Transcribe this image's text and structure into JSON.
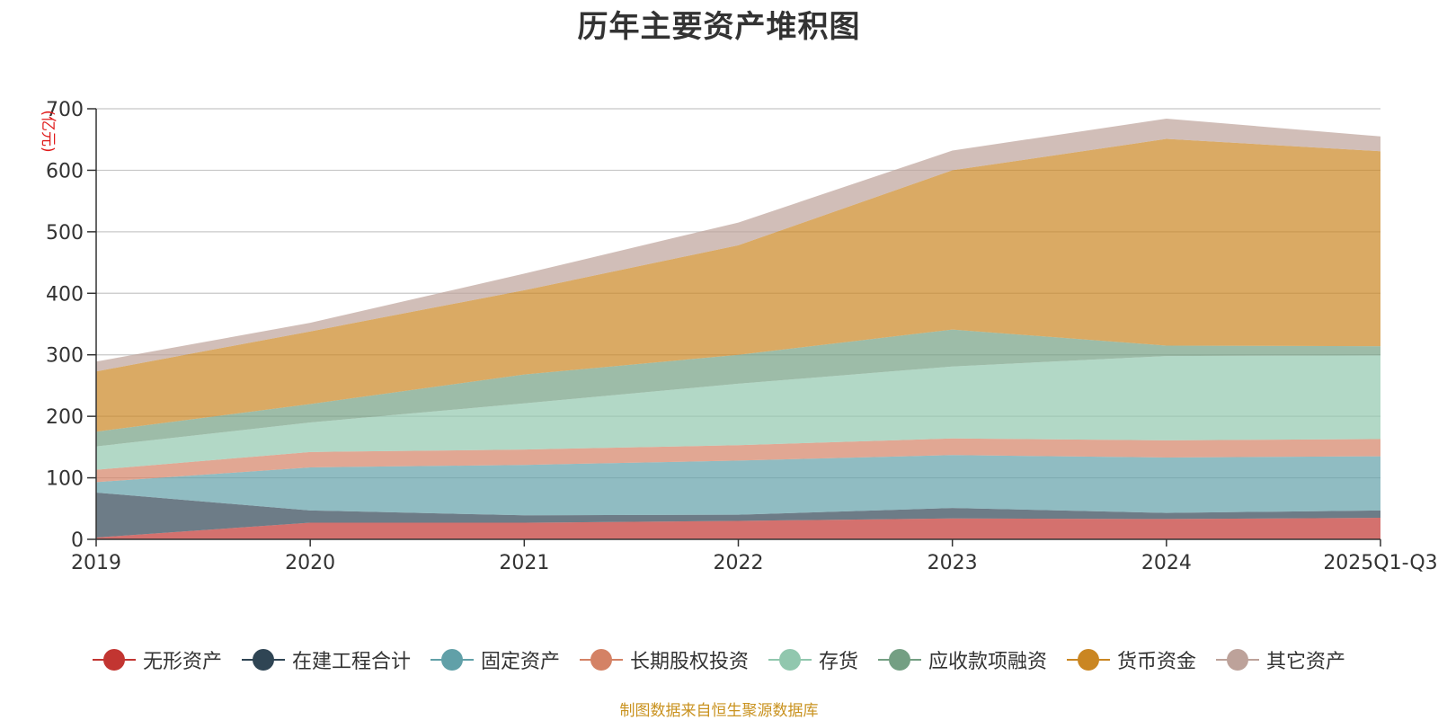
{
  "chart_data": {
    "type": "area",
    "stacked": true,
    "title": "历年主要资产堆积图",
    "unit_label": "(亿元)",
    "x": [
      "2019",
      "2020",
      "2021",
      "2022",
      "2023",
      "2024",
      "2025Q1-Q3"
    ],
    "ylim": [
      0,
      700
    ],
    "yticks": [
      0,
      100,
      200,
      300,
      400,
      500,
      600,
      700
    ],
    "grid": true,
    "legend_position": "bottom",
    "series": [
      {
        "name": "无形资产",
        "color": "#c23531",
        "values": [
          3,
          27,
          27,
          30,
          34,
          33,
          35
        ]
      },
      {
        "name": "在建工程合计",
        "color": "#2f4554",
        "values": [
          73,
          20,
          12,
          10,
          17,
          10,
          12
        ]
      },
      {
        "name": "固定资产",
        "color": "#61a0a8",
        "values": [
          17,
          70,
          82,
          88,
          86,
          90,
          88
        ]
      },
      {
        "name": "长期股权投资",
        "color": "#d48265",
        "values": [
          20,
          25,
          25,
          25,
          27,
          28,
          28
        ]
      },
      {
        "name": "存货",
        "color": "#91c7ae",
        "values": [
          38,
          48,
          75,
          100,
          117,
          137,
          136
        ]
      },
      {
        "name": "应收款项融资",
        "color": "#749f83",
        "values": [
          24,
          30,
          47,
          47,
          60,
          17,
          15
        ]
      },
      {
        "name": "货币资金",
        "color": "#ca8622",
        "values": [
          98,
          118,
          137,
          178,
          259,
          336,
          317
        ]
      },
      {
        "name": "其它资产",
        "color": "#bda29a",
        "values": [
          16,
          14,
          27,
          37,
          32,
          33,
          24
        ]
      }
    ]
  },
  "source": "制图数据来自恒生聚源数据库"
}
